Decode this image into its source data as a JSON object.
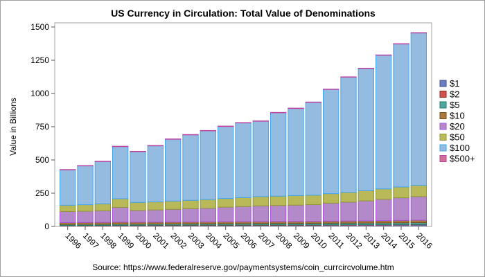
{
  "chart_data": {
    "type": "bar",
    "stacked": true,
    "title": "US Currency in Circulation: Total Value of Denominations",
    "xlabel": "",
    "ylabel": "Value in Billions",
    "footnote": "Source: https://www.federalreserve.gov/paymentsystems/coin_currcircvolume.htm",
    "ylim": [
      0,
      1500
    ],
    "yticks": [
      0,
      250,
      500,
      750,
      1000,
      1250,
      1500
    ],
    "ytick_labels": [
      "0",
      "250",
      "500",
      "750",
      "1000",
      "1250",
      "1500"
    ],
    "grid": false,
    "legend_position": "right",
    "categories": [
      "1996",
      "1997",
      "1998",
      "1999",
      "2000",
      "2001",
      "2002",
      "2003",
      "2004",
      "2005",
      "2006",
      "2007",
      "2008",
      "2009",
      "2010",
      "2011",
      "2012",
      "2013",
      "2014",
      "2015",
      "2016"
    ],
    "series": [
      {
        "name": "$1",
        "color": "#6b7fc0",
        "edge": "#3d4f8e",
        "values": [
          6.3,
          6.6,
          6.9,
          7.4,
          7.4,
          7.7,
          7.9,
          8.2,
          8.4,
          8.6,
          8.8,
          9.1,
          9.3,
          9.5,
          9.9,
          10.3,
          10.6,
          10.9,
          11.2,
          11.6,
          11.9
        ]
      },
      {
        "name": "$2",
        "color": "#d45050",
        "edge": "#a02020",
        "values": [
          1.0,
          1.0,
          1.1,
          1.1,
          1.2,
          1.3,
          1.3,
          1.4,
          1.5,
          1.5,
          1.6,
          1.6,
          1.7,
          1.7,
          1.8,
          1.9,
          1.9,
          2.0,
          2.1,
          2.2,
          2.3
        ]
      },
      {
        "name": "$5",
        "color": "#4ea89e",
        "edge": "#1e7a70",
        "values": [
          7.7,
          8.0,
          8.3,
          9.0,
          8.8,
          9.1,
          9.4,
          9.7,
          10.1,
          10.3,
          10.7,
          11.0,
          11.2,
          11.4,
          11.6,
          11.9,
          12.2,
          12.6,
          13.1,
          13.6,
          14.1
        ]
      },
      {
        "name": "$10",
        "color": "#a8783c",
        "edge": "#7a4e1a",
        "values": [
          13.7,
          13.9,
          14.0,
          15.2,
          14.5,
          14.4,
          14.4,
          14.5,
          14.6,
          14.8,
          14.8,
          14.9,
          15.0,
          14.8,
          15.1,
          15.7,
          16.3,
          16.7,
          17.2,
          18.0,
          18.7
        ]
      },
      {
        "name": "$20",
        "color": "#b389c9",
        "edge": "#a84ee0",
        "values": [
          84,
          85,
          88,
          111,
          89,
          92,
          96,
          100,
          103,
          110,
          114,
          118,
          121,
          123,
          126,
          136,
          142,
          150,
          160,
          170,
          178
        ]
      },
      {
        "name": "$50",
        "color": "#b9b95a",
        "edge": "#8e9a2e",
        "values": [
          47,
          49,
          52,
          65,
          60,
          60,
          62,
          63,
          65,
          65,
          67,
          70,
          70,
          72,
          71,
          71,
          74,
          77,
          79,
          82,
          85
        ]
      },
      {
        "name": "$100",
        "color": "#94bbe0",
        "edge": "#3fa6f2",
        "values": [
          268,
          294,
          320,
          394,
          384,
          424,
          467,
          494,
          519,
          544,
          564,
          569,
          629,
          657,
          700,
          786,
          868,
          921,
          1007,
          1077,
          1147
        ]
      },
      {
        "name": "$500+",
        "color": "#d0709a",
        "edge": "#c040a0",
        "values": [
          0.2,
          0.2,
          0.2,
          0.2,
          0.2,
          0.2,
          0.2,
          0.2,
          0.2,
          0.2,
          0.2,
          0.2,
          0.2,
          0.2,
          0.2,
          0.2,
          0.2,
          0.2,
          0.2,
          0.2,
          0.2
        ]
      }
    ]
  }
}
